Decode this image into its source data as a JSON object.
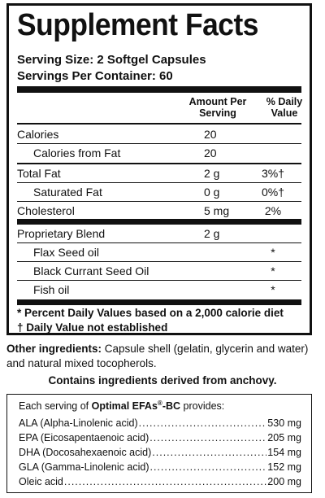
{
  "title": "Supplement Facts",
  "serving_size": "Serving Size: 2 Softgel Capsules",
  "servings_per_container": "Servings Per Container: 60",
  "headers": {
    "amount": [
      "Amount Per",
      "Serving"
    ],
    "dv": [
      "% Daily",
      "Value"
    ]
  },
  "rows": [
    {
      "label": "Calories",
      "amount": "20",
      "dv": ""
    },
    {
      "label": "Calories from Fat",
      "amount": "20",
      "dv": ""
    },
    {
      "label": "Total Fat",
      "amount": "2 g",
      "dv": "3%†"
    },
    {
      "label": "Saturated Fat",
      "amount": "0 g",
      "dv": "0%†"
    },
    {
      "label": "Cholesterol",
      "amount": "5 mg",
      "dv": "2%"
    },
    {
      "label": "Proprietary Blend",
      "amount": "2 g",
      "dv": ""
    },
    {
      "label": "Flax Seed oil",
      "amount": "",
      "dv": "*"
    },
    {
      "label": "Black Currant Seed Oil",
      "amount": "",
      "dv": "*"
    },
    {
      "label": "Fish oil",
      "amount": "",
      "dv": "*"
    }
  ],
  "footnotes": [
    "* Percent Daily Values based on a 2,000 calorie diet",
    "† Daily Value not established"
  ],
  "other_ingredients_label": "Other ingredients:",
  "other_ingredients_text": " Capsule shell (gelatin, glycerin and water) and natural mixed tocopherols.",
  "contains": "Contains ingredients derived from anchovy.",
  "efa_box": {
    "intro_prefix": "Each serving of ",
    "product": "Optimal EFAs",
    "reg": "®",
    "suffix": "-BC",
    "intro_end": " provides:",
    "items": [
      {
        "name": "ALA (Alpha-Linolenic acid)",
        "value": "530 mg"
      },
      {
        "name": "EPA (Eicosapentaenoic acid)",
        "value": "205 mg"
      },
      {
        "name": "DHA (Docosahexaenoic acid)",
        "value": "154 mg"
      },
      {
        "name": "GLA (Gamma-Linolenic acid)",
        "value": "152 mg"
      },
      {
        "name": "Oleic acid",
        "value": "200 mg"
      }
    ]
  }
}
